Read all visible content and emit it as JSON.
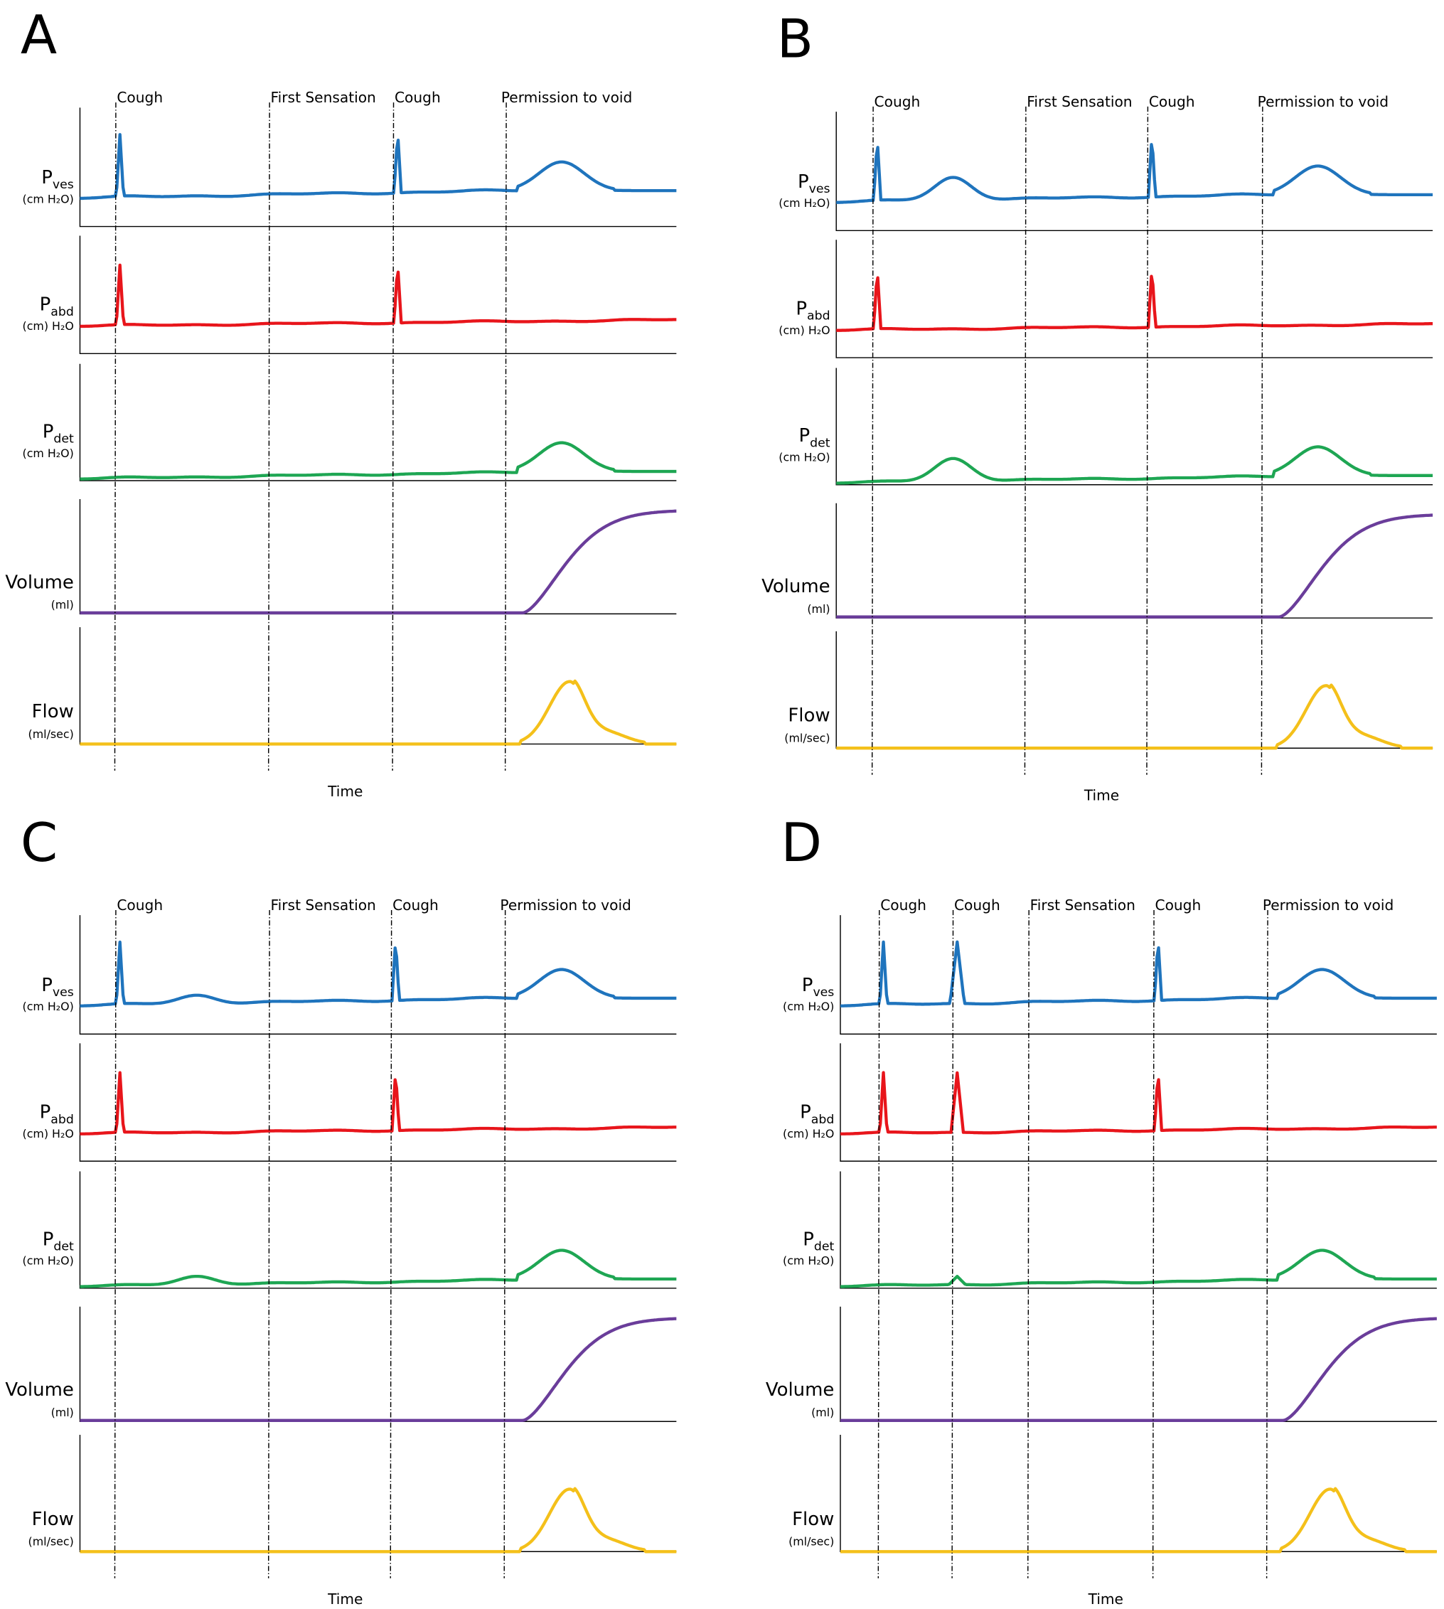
{
  "panels": [
    {
      "letter": "A",
      "events": [
        "Cough",
        "First Sensation",
        "Cough",
        "Permission to void"
      ],
      "channels": [
        {
          "main": "P",
          "sub": "ves",
          "unit": "(cm H₂O)"
        },
        {
          "main": "P",
          "sub": "abd",
          "unit": "(cm) H₂O"
        },
        {
          "main": "P",
          "sub": "det",
          "unit": "(cm H₂O)"
        },
        {
          "main": "Volume",
          "unit": "(ml)"
        },
        {
          "main": "Flow",
          "unit": "(ml/sec)"
        }
      ],
      "x_label": "Time"
    },
    {
      "letter": "B",
      "events": [
        "Cough",
        "First Sensation",
        "Cough",
        "Permission to void"
      ],
      "channels": [
        {
          "main": "P",
          "sub": "ves",
          "unit": "(cm H₂O)"
        },
        {
          "main": "P",
          "sub": "abd",
          "unit": "(cm) H₂O"
        },
        {
          "main": "P",
          "sub": "det",
          "unit": "(cm H₂O)"
        },
        {
          "main": "Volume",
          "unit": "(ml)"
        },
        {
          "main": "Flow",
          "unit": "(ml/sec)"
        }
      ],
      "x_label": "Time"
    },
    {
      "letter": "C",
      "events": [
        "Cough",
        "First Sensation",
        "Cough",
        "Permission to void"
      ],
      "channels": [
        {
          "main": "P",
          "sub": "ves",
          "unit": "(cm H₂O)"
        },
        {
          "main": "P",
          "sub": "abd",
          "unit": "(cm) H₂O"
        },
        {
          "main": "P",
          "sub": "det",
          "unit": "(cm H₂O)"
        },
        {
          "main": "Volume",
          "unit": "(ml)"
        },
        {
          "main": "Flow",
          "unit": "(ml/sec)"
        }
      ],
      "x_label": "Time"
    },
    {
      "letter": "D",
      "events": [
        "Cough",
        "Cough",
        "First Sensation",
        "Cough",
        "Permission to void"
      ],
      "channels": [
        {
          "main": "P",
          "sub": "ves",
          "unit": "(cm H₂O)"
        },
        {
          "main": "P",
          "sub": "abd",
          "unit": "(cm) H₂O"
        },
        {
          "main": "P",
          "sub": "det",
          "unit": "(cm H₂O)"
        },
        {
          "main": "Volume",
          "unit": "(ml)"
        },
        {
          "main": "Flow",
          "unit": "(ml/sec)"
        }
      ],
      "x_label": "Time"
    }
  ]
}
